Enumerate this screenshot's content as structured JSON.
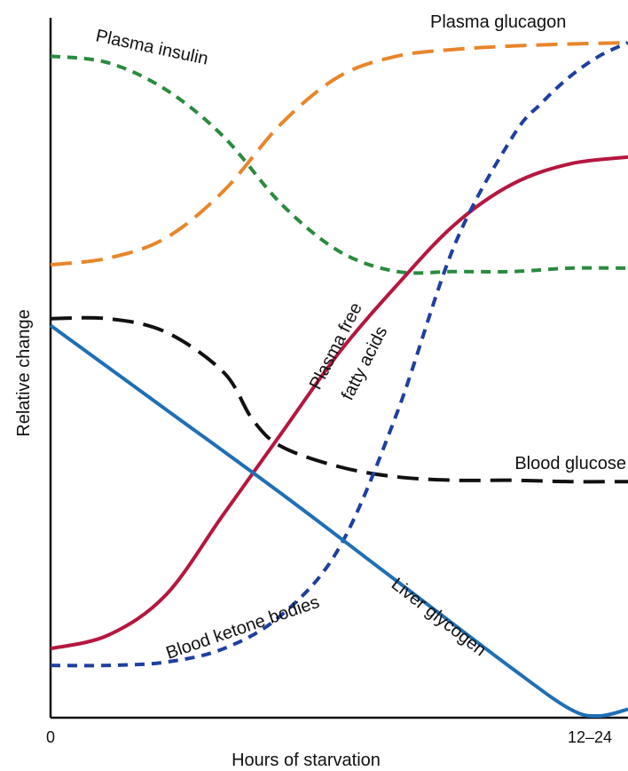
{
  "chart_data": {
    "type": "line",
    "title": "",
    "xlabel": "Hours of starvation",
    "ylabel": "Relative change",
    "x_ticks": [
      "0",
      "12–24"
    ],
    "xlim": [
      0,
      1
    ],
    "ylim": [
      0,
      1
    ],
    "grid": false,
    "legend": "none (curves labeled directly)",
    "series": [
      {
        "name": "Plasma glucagon",
        "color": "#e8862a",
        "dash": "long-dash",
        "x": [
          0,
          0.1,
          0.2,
          0.3,
          0.4,
          0.5,
          0.6,
          0.7,
          0.8,
          0.9,
          1.0
        ],
        "y": [
          0.67,
          0.68,
          0.71,
          0.78,
          0.88,
          0.95,
          0.98,
          0.99,
          0.995,
          0.998,
          1.0
        ]
      },
      {
        "name": "Plasma insulin",
        "color": "#2a8a3e",
        "dash": "short-dash",
        "x": [
          0,
          0.1,
          0.2,
          0.3,
          0.4,
          0.5,
          0.6,
          0.7,
          0.8,
          0.9,
          1.0
        ],
        "y": [
          0.98,
          0.97,
          0.93,
          0.86,
          0.76,
          0.69,
          0.66,
          0.66,
          0.66,
          0.665,
          0.665
        ]
      },
      {
        "name": "Plasma free fatty acids",
        "color": "#b5173f",
        "dash": "solid",
        "x": [
          0,
          0.1,
          0.2,
          0.3,
          0.4,
          0.5,
          0.6,
          0.7,
          0.8,
          0.9,
          1.0
        ],
        "y": [
          0.1,
          0.12,
          0.18,
          0.3,
          0.42,
          0.54,
          0.64,
          0.73,
          0.79,
          0.82,
          0.83
        ]
      },
      {
        "name": "Blood glucose",
        "color": "#111111",
        "dash": "long-dash",
        "x": [
          0,
          0.1,
          0.2,
          0.3,
          0.35,
          0.4,
          0.5,
          0.6,
          0.7,
          0.8,
          0.9,
          1.0
        ],
        "y": [
          0.59,
          0.59,
          0.57,
          0.51,
          0.44,
          0.4,
          0.37,
          0.355,
          0.35,
          0.35,
          0.348,
          0.348
        ]
      },
      {
        "name": "Blood ketone bodies",
        "color": "#1f3fa0",
        "dash": "short-dash",
        "x": [
          0,
          0.1,
          0.2,
          0.3,
          0.4,
          0.5,
          0.6,
          0.7,
          0.8,
          0.85,
          0.9,
          0.95,
          1.0
        ],
        "y": [
          0.075,
          0.075,
          0.08,
          0.1,
          0.15,
          0.25,
          0.45,
          0.7,
          0.86,
          0.91,
          0.95,
          0.98,
          1.0
        ]
      },
      {
        "name": "Liver glycogen",
        "color": "#1f6fb5",
        "dash": "solid",
        "x": [
          0,
          0.2,
          0.4,
          0.6,
          0.8,
          0.9,
          0.95,
          1.0
        ],
        "y": [
          0.58,
          0.455,
          0.33,
          0.2,
          0.07,
          0.01,
          0.0,
          0.01
        ]
      }
    ]
  },
  "labels": {
    "plasma_glucagon": "Plasma glucagon",
    "plasma_insulin": "Plasma insulin",
    "plasma_free": "Plasma free",
    "fatty_acids": "fatty acids",
    "blood_glucose": "Blood glucose",
    "blood_ketone_bodies": "Blood ketone bodies",
    "liver_glycogen": "Liver glycogen"
  }
}
